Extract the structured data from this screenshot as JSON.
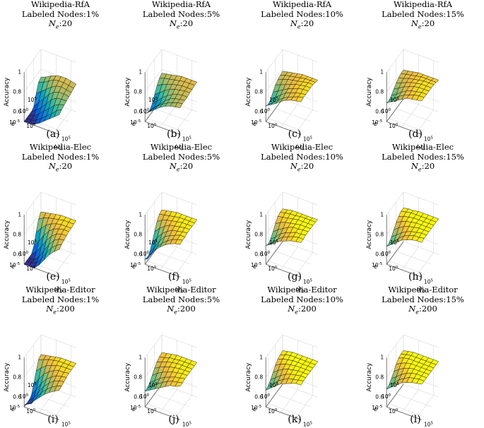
{
  "common": {
    "zlabel": "Accuracy",
    "xlabel": "ω",
    "xlabel_sub": "0",
    "ylabel": "ε",
    "ne_prefix": "N",
    "ne_sub": "e",
    "z_ticks": [
      "0.6",
      "0.8",
      "1"
    ],
    "x_ticks": [
      "10",
      "10"
    ],
    "x_tick_exps": [
      "0",
      "5"
    ],
    "y_ticks": [
      "10",
      "10",
      "10"
    ],
    "y_tick_exps": [
      "5",
      "0",
      "-5"
    ]
  },
  "chart_data": [
    {
      "type": "surface",
      "label": "(a)",
      "dataset": "Wikipedia-RfA",
      "labeled_nodes": "Labeled Nodes:1%",
      "ne": ":20",
      "zlim": [
        0.5,
        1
      ],
      "z": [
        [
          0.72,
          0.74,
          0.77,
          0.79,
          0.8,
          0.8,
          0.79,
          0.78
        ],
        [
          0.7,
          0.72,
          0.75,
          0.78,
          0.79,
          0.79,
          0.78,
          0.77
        ],
        [
          0.62,
          0.66,
          0.7,
          0.74,
          0.77,
          0.78,
          0.77,
          0.76
        ],
        [
          0.52,
          0.58,
          0.64,
          0.7,
          0.74,
          0.76,
          0.76,
          0.75
        ],
        [
          0.5,
          0.54,
          0.58,
          0.64,
          0.7,
          0.73,
          0.74,
          0.74
        ],
        [
          0.5,
          0.51,
          0.55,
          0.6,
          0.64,
          0.69,
          0.72,
          0.73
        ],
        [
          0.5,
          0.5,
          0.52,
          0.56,
          0.6,
          0.64,
          0.69,
          0.72
        ],
        [
          0.5,
          0.5,
          0.51,
          0.54,
          0.58,
          0.62,
          0.66,
          0.7
        ]
      ]
    },
    {
      "type": "surface",
      "label": "(b)",
      "dataset": "Wikipedia-RfA",
      "labeled_nodes": "Labeled Nodes:5%",
      "ne": ":20",
      "zlim": [
        0.5,
        1
      ],
      "z": [
        [
          0.76,
          0.77,
          0.78,
          0.79,
          0.8,
          0.8,
          0.8,
          0.8
        ],
        [
          0.74,
          0.76,
          0.77,
          0.78,
          0.79,
          0.8,
          0.8,
          0.8
        ],
        [
          0.7,
          0.73,
          0.75,
          0.77,
          0.78,
          0.79,
          0.79,
          0.79
        ],
        [
          0.64,
          0.68,
          0.72,
          0.75,
          0.77,
          0.78,
          0.79,
          0.79
        ],
        [
          0.58,
          0.63,
          0.68,
          0.72,
          0.75,
          0.77,
          0.78,
          0.78
        ],
        [
          0.55,
          0.6,
          0.65,
          0.7,
          0.74,
          0.76,
          0.77,
          0.78
        ],
        [
          0.56,
          0.61,
          0.66,
          0.7,
          0.73,
          0.75,
          0.77,
          0.78
        ],
        [
          0.58,
          0.62,
          0.66,
          0.7,
          0.73,
          0.75,
          0.76,
          0.77
        ]
      ]
    },
    {
      "type": "surface",
      "label": "(c)",
      "dataset": "Wikipedia-RfA",
      "labeled_nodes": "Labeled Nodes:10%",
      "ne": ":20",
      "zlim": [
        0.5,
        1
      ],
      "z": [
        [
          0.78,
          0.79,
          0.8,
          0.81,
          0.82,
          0.82,
          0.82,
          0.82
        ],
        [
          0.77,
          0.79,
          0.8,
          0.81,
          0.82,
          0.83,
          0.83,
          0.83
        ],
        [
          0.76,
          0.78,
          0.8,
          0.81,
          0.82,
          0.83,
          0.84,
          0.84
        ],
        [
          0.74,
          0.76,
          0.78,
          0.8,
          0.82,
          0.83,
          0.84,
          0.84
        ],
        [
          0.7,
          0.73,
          0.76,
          0.79,
          0.81,
          0.83,
          0.84,
          0.84
        ],
        [
          0.66,
          0.7,
          0.74,
          0.78,
          0.8,
          0.82,
          0.83,
          0.84
        ],
        [
          0.64,
          0.68,
          0.72,
          0.76,
          0.79,
          0.81,
          0.83,
          0.84
        ],
        [
          0.66,
          0.69,
          0.72,
          0.76,
          0.79,
          0.81,
          0.82,
          0.83
        ]
      ]
    },
    {
      "type": "surface",
      "label": "(d)",
      "dataset": "Wikipedia-RfA",
      "labeled_nodes": "Labeled Nodes:15%",
      "ne": ":20",
      "zlim": [
        0.5,
        1
      ],
      "z": [
        [
          0.79,
          0.8,
          0.81,
          0.82,
          0.82,
          0.82,
          0.82,
          0.82
        ],
        [
          0.79,
          0.8,
          0.81,
          0.82,
          0.83,
          0.83,
          0.83,
          0.83
        ],
        [
          0.78,
          0.79,
          0.81,
          0.82,
          0.83,
          0.84,
          0.84,
          0.84
        ],
        [
          0.76,
          0.78,
          0.8,
          0.82,
          0.83,
          0.84,
          0.84,
          0.84
        ],
        [
          0.73,
          0.76,
          0.79,
          0.81,
          0.83,
          0.84,
          0.84,
          0.84
        ],
        [
          0.7,
          0.73,
          0.77,
          0.8,
          0.82,
          0.83,
          0.84,
          0.84
        ],
        [
          0.68,
          0.72,
          0.76,
          0.79,
          0.81,
          0.83,
          0.84,
          0.84
        ],
        [
          0.69,
          0.72,
          0.75,
          0.78,
          0.81,
          0.82,
          0.83,
          0.84
        ]
      ]
    },
    {
      "type": "surface",
      "label": "(e)",
      "dataset": "Wikipedia-Elec",
      "labeled_nodes": "Labeled Nodes:1%",
      "ne": ":20",
      "zlim": [
        0.5,
        1
      ],
      "z": [
        [
          0.8,
          0.81,
          0.82,
          0.83,
          0.84,
          0.84,
          0.84,
          0.84
        ],
        [
          0.76,
          0.79,
          0.81,
          0.82,
          0.83,
          0.84,
          0.84,
          0.84
        ],
        [
          0.66,
          0.72,
          0.77,
          0.8,
          0.82,
          0.83,
          0.83,
          0.83
        ],
        [
          0.55,
          0.62,
          0.7,
          0.76,
          0.8,
          0.82,
          0.83,
          0.83
        ],
        [
          0.5,
          0.55,
          0.62,
          0.7,
          0.76,
          0.8,
          0.82,
          0.82
        ],
        [
          0.5,
          0.5,
          0.55,
          0.63,
          0.71,
          0.77,
          0.8,
          0.81
        ],
        [
          0.5,
          0.5,
          0.52,
          0.58,
          0.66,
          0.73,
          0.77,
          0.8
        ],
        [
          0.5,
          0.5,
          0.5,
          0.55,
          0.62,
          0.69,
          0.74,
          0.78
        ]
      ]
    },
    {
      "type": "surface",
      "label": "(f)",
      "dataset": "Wikipedia-Elec",
      "labeled_nodes": "Labeled Nodes:5%",
      "ne": ":20",
      "zlim": [
        0.5,
        1
      ],
      "z": [
        [
          0.82,
          0.83,
          0.84,
          0.85,
          0.85,
          0.85,
          0.85,
          0.85
        ],
        [
          0.81,
          0.82,
          0.83,
          0.84,
          0.85,
          0.85,
          0.85,
          0.85
        ],
        [
          0.77,
          0.8,
          0.82,
          0.83,
          0.84,
          0.85,
          0.85,
          0.85
        ],
        [
          0.7,
          0.75,
          0.79,
          0.82,
          0.83,
          0.84,
          0.85,
          0.85
        ],
        [
          0.62,
          0.69,
          0.75,
          0.79,
          0.82,
          0.83,
          0.84,
          0.85
        ],
        [
          0.56,
          0.63,
          0.71,
          0.77,
          0.8,
          0.82,
          0.84,
          0.84
        ],
        [
          0.52,
          0.6,
          0.68,
          0.74,
          0.78,
          0.81,
          0.83,
          0.84
        ],
        [
          0.55,
          0.62,
          0.68,
          0.73,
          0.77,
          0.8,
          0.82,
          0.83
        ]
      ]
    },
    {
      "type": "surface",
      "label": "(g)",
      "dataset": "Wikipedia-Elec",
      "labeled_nodes": "Labeled Nodes:10%",
      "ne": ":20",
      "zlim": [
        0.5,
        1
      ],
      "z": [
        [
          0.83,
          0.84,
          0.85,
          0.85,
          0.85,
          0.85,
          0.85,
          0.85
        ],
        [
          0.83,
          0.84,
          0.85,
          0.85,
          0.86,
          0.86,
          0.86,
          0.86
        ],
        [
          0.82,
          0.83,
          0.84,
          0.85,
          0.86,
          0.86,
          0.86,
          0.86
        ],
        [
          0.78,
          0.81,
          0.83,
          0.84,
          0.85,
          0.86,
          0.86,
          0.86
        ],
        [
          0.73,
          0.77,
          0.8,
          0.83,
          0.85,
          0.85,
          0.86,
          0.86
        ],
        [
          0.69,
          0.73,
          0.78,
          0.81,
          0.83,
          0.85,
          0.85,
          0.86
        ],
        [
          0.67,
          0.71,
          0.76,
          0.8,
          0.82,
          0.84,
          0.85,
          0.85
        ],
        [
          0.69,
          0.72,
          0.76,
          0.79,
          0.81,
          0.83,
          0.84,
          0.85
        ]
      ]
    },
    {
      "type": "surface",
      "label": "(h)",
      "dataset": "Wikipedia-Elec",
      "labeled_nodes": "Labeled Nodes:15%",
      "ne": ":20",
      "zlim": [
        0.5,
        1
      ],
      "z": [
        [
          0.84,
          0.85,
          0.85,
          0.86,
          0.86,
          0.86,
          0.86,
          0.86
        ],
        [
          0.84,
          0.85,
          0.86,
          0.86,
          0.86,
          0.86,
          0.86,
          0.86
        ],
        [
          0.82,
          0.84,
          0.85,
          0.86,
          0.86,
          0.86,
          0.86,
          0.86
        ],
        [
          0.79,
          0.82,
          0.84,
          0.85,
          0.86,
          0.86,
          0.86,
          0.86
        ],
        [
          0.75,
          0.79,
          0.82,
          0.84,
          0.85,
          0.86,
          0.86,
          0.86
        ],
        [
          0.71,
          0.75,
          0.79,
          0.82,
          0.84,
          0.85,
          0.86,
          0.86
        ],
        [
          0.68,
          0.72,
          0.77,
          0.81,
          0.83,
          0.85,
          0.85,
          0.86
        ],
        [
          0.68,
          0.72,
          0.76,
          0.8,
          0.82,
          0.84,
          0.85,
          0.85
        ]
      ]
    },
    {
      "type": "surface",
      "label": "(i)",
      "dataset": "Wikipedia-Editor",
      "labeled_nodes": "Labeled Nodes:1%",
      "ne": ":200",
      "zlim": [
        0.5,
        1
      ],
      "z": [
        [
          0.8,
          0.81,
          0.82,
          0.83,
          0.84,
          0.84,
          0.84,
          0.84
        ],
        [
          0.78,
          0.8,
          0.82,
          0.83,
          0.84,
          0.84,
          0.84,
          0.84
        ],
        [
          0.7,
          0.75,
          0.79,
          0.81,
          0.83,
          0.84,
          0.84,
          0.84
        ],
        [
          0.6,
          0.67,
          0.74,
          0.78,
          0.81,
          0.83,
          0.83,
          0.84
        ],
        [
          0.52,
          0.6,
          0.68,
          0.74,
          0.78,
          0.81,
          0.82,
          0.83
        ],
        [
          0.5,
          0.55,
          0.63,
          0.7,
          0.75,
          0.79,
          0.81,
          0.82
        ],
        [
          0.5,
          0.52,
          0.6,
          0.67,
          0.72,
          0.76,
          0.79,
          0.81
        ],
        [
          0.52,
          0.55,
          0.6,
          0.65,
          0.7,
          0.74,
          0.77,
          0.8
        ]
      ]
    },
    {
      "type": "surface",
      "label": "(j)",
      "dataset": "Wikipedia-Editor",
      "labeled_nodes": "Labeled Nodes:5%",
      "ne": ":200",
      "zlim": [
        0.5,
        1
      ],
      "z": [
        [
          0.82,
          0.83,
          0.84,
          0.85,
          0.85,
          0.85,
          0.85,
          0.85
        ],
        [
          0.81,
          0.82,
          0.84,
          0.84,
          0.85,
          0.85,
          0.85,
          0.85
        ],
        [
          0.79,
          0.81,
          0.83,
          0.84,
          0.85,
          0.85,
          0.85,
          0.85
        ],
        [
          0.76,
          0.79,
          0.81,
          0.83,
          0.84,
          0.85,
          0.85,
          0.85
        ],
        [
          0.72,
          0.76,
          0.79,
          0.81,
          0.83,
          0.84,
          0.85,
          0.85
        ],
        [
          0.68,
          0.72,
          0.76,
          0.79,
          0.81,
          0.83,
          0.84,
          0.85
        ],
        [
          0.66,
          0.7,
          0.74,
          0.77,
          0.8,
          0.82,
          0.83,
          0.84
        ],
        [
          0.66,
          0.69,
          0.72,
          0.75,
          0.78,
          0.81,
          0.82,
          0.84
        ]
      ]
    },
    {
      "type": "surface",
      "label": "(k)",
      "dataset": "Wikipedia-Editor",
      "labeled_nodes": "Labeled Nodes:10%",
      "ne": ":200",
      "zlim": [
        0.5,
        1
      ],
      "z": [
        [
          0.84,
          0.85,
          0.86,
          0.86,
          0.86,
          0.86,
          0.86,
          0.86
        ],
        [
          0.83,
          0.85,
          0.86,
          0.86,
          0.86,
          0.86,
          0.86,
          0.86
        ],
        [
          0.82,
          0.84,
          0.85,
          0.86,
          0.86,
          0.86,
          0.86,
          0.86
        ],
        [
          0.79,
          0.82,
          0.84,
          0.85,
          0.86,
          0.86,
          0.86,
          0.86
        ],
        [
          0.75,
          0.79,
          0.82,
          0.84,
          0.85,
          0.86,
          0.86,
          0.86
        ],
        [
          0.71,
          0.75,
          0.79,
          0.82,
          0.84,
          0.85,
          0.86,
          0.86
        ],
        [
          0.68,
          0.72,
          0.77,
          0.8,
          0.83,
          0.84,
          0.85,
          0.86
        ],
        [
          0.67,
          0.71,
          0.75,
          0.79,
          0.81,
          0.83,
          0.85,
          0.85
        ]
      ]
    },
    {
      "type": "surface",
      "label": "(l)",
      "dataset": "Wikipedia-Editor",
      "labeled_nodes": "Labeled Nodes:15%",
      "ne": ":200",
      "zlim": [
        0.5,
        1
      ],
      "z": [
        [
          0.84,
          0.85,
          0.86,
          0.86,
          0.86,
          0.86,
          0.86,
          0.86
        ],
        [
          0.84,
          0.85,
          0.86,
          0.86,
          0.86,
          0.86,
          0.86,
          0.86
        ],
        [
          0.83,
          0.85,
          0.86,
          0.86,
          0.86,
          0.86,
          0.86,
          0.86
        ],
        [
          0.8,
          0.83,
          0.85,
          0.86,
          0.86,
          0.86,
          0.86,
          0.86
        ],
        [
          0.76,
          0.8,
          0.83,
          0.85,
          0.86,
          0.86,
          0.86,
          0.86
        ],
        [
          0.72,
          0.76,
          0.8,
          0.83,
          0.85,
          0.86,
          0.86,
          0.86
        ],
        [
          0.69,
          0.73,
          0.78,
          0.81,
          0.84,
          0.85,
          0.86,
          0.86
        ],
        [
          0.68,
          0.72,
          0.76,
          0.8,
          0.82,
          0.84,
          0.85,
          0.86
        ]
      ]
    }
  ]
}
